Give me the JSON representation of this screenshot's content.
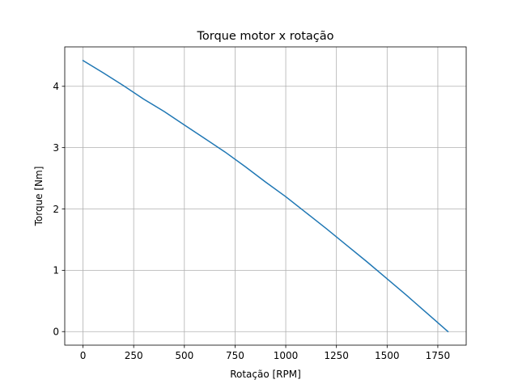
{
  "chart_data": {
    "type": "line",
    "title": "Torque motor x rotação",
    "xlabel": "Rotação [RPM]",
    "ylabel": "Torque [Nm]",
    "xlim": [
      -90,
      1890
    ],
    "ylim": [
      -0.221,
      4.643
    ],
    "grid": true,
    "xticks": [
      0,
      250,
      500,
      750,
      1000,
      1250,
      1500,
      1750
    ],
    "yticks": [
      0,
      1,
      2,
      3,
      4
    ],
    "series": [
      {
        "color": "#1f77b4",
        "x": [
          0,
          100,
          200,
          300,
          400,
          500,
          600,
          700,
          800,
          900,
          1000,
          1100,
          1200,
          1300,
          1400,
          1500,
          1600,
          1700,
          1800
        ],
        "y": [
          4.42,
          4.22,
          4.01,
          3.79,
          3.59,
          3.37,
          3.15,
          2.93,
          2.69,
          2.44,
          2.2,
          1.94,
          1.68,
          1.41,
          1.14,
          0.86,
          0.58,
          0.29,
          0.0
        ]
      }
    ]
  }
}
